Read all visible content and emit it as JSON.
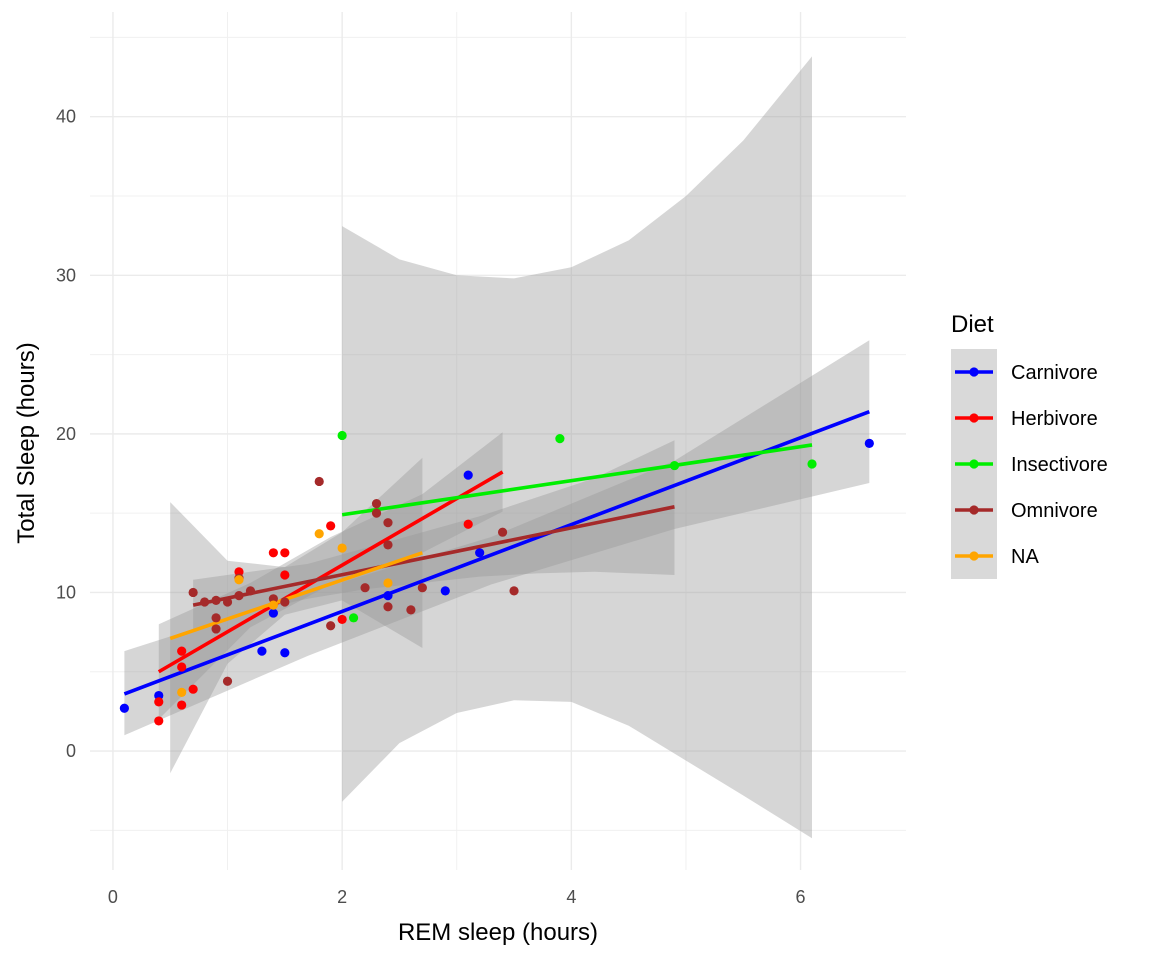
{
  "chart_data": {
    "type": "scatter",
    "title": "",
    "xlabel": "REM sleep (hours)",
    "ylabel": "Total Sleep (hours)",
    "xlim": [
      -0.2,
      6.92
    ],
    "ylim": [
      -7.5,
      46.6
    ],
    "x_ticks": [
      0,
      2,
      4,
      6
    ],
    "y_ticks": [
      0,
      10,
      20,
      30,
      40
    ],
    "grid": true,
    "legend": {
      "title": "Diet",
      "placement": "right",
      "entries": [
        {
          "name": "Carnivore",
          "color": "#0000ff"
        },
        {
          "name": "Herbivore",
          "color": "#ff0000"
        },
        {
          "name": "Insectivore",
          "color": "#00ee00"
        },
        {
          "name": "Omnivore",
          "color": "#a52a2a"
        },
        {
          "name": "NA",
          "color": "#ffa500"
        }
      ]
    },
    "series": [
      {
        "name": "Carnivore",
        "color": "#0000ff",
        "points": [
          [
            0.1,
            2.7
          ],
          [
            0.4,
            3.5
          ],
          [
            1.3,
            6.3
          ],
          [
            1.4,
            8.7
          ],
          [
            1.5,
            6.2
          ],
          [
            2.4,
            9.8
          ],
          [
            2.9,
            10.1
          ],
          [
            3.1,
            17.4
          ],
          [
            3.2,
            12.5
          ],
          [
            6.6,
            19.4
          ]
        ],
        "trend": [
          [
            0.1,
            3.6
          ],
          [
            6.6,
            21.4
          ]
        ],
        "band": {
          "x": [
            0.1,
            1.7,
            3.3,
            4.9,
            6.6
          ],
          "lower": [
            1.0,
            6.0,
            10.5,
            14.0,
            16.9
          ],
          "upper": [
            6.3,
            10.0,
            13.5,
            18.3,
            25.9
          ]
        }
      },
      {
        "name": "Herbivore",
        "color": "#ff0000",
        "points": [
          [
            0.4,
            1.9
          ],
          [
            0.4,
            3.1
          ],
          [
            0.6,
            2.9
          ],
          [
            0.6,
            5.3
          ],
          [
            0.6,
            6.3
          ],
          [
            1.4,
            12.5
          ],
          [
            1.5,
            12.5
          ],
          [
            1.5,
            11.1
          ],
          [
            1.9,
            14.2
          ],
          [
            1.1,
            11.3
          ],
          [
            2.0,
            8.3
          ],
          [
            3.1,
            14.3
          ],
          [
            0.7,
            3.9
          ]
        ],
        "trend": [
          [
            0.4,
            5.0
          ],
          [
            3.4,
            17.6
          ]
        ],
        "band": {
          "x": [
            0.4,
            1.2,
            1.9,
            2.7,
            3.4
          ],
          "lower": [
            2.0,
            7.8,
            10.5,
            12.5,
            15.1
          ],
          "upper": [
            8.0,
            10.6,
            13.5,
            16.2,
            20.1
          ]
        }
      },
      {
        "name": "Insectivore",
        "color": "#00ee00",
        "points": [
          [
            2.0,
            19.9
          ],
          [
            2.1,
            8.4
          ],
          [
            3.9,
            19.7
          ],
          [
            6.1,
            18.1
          ],
          [
            4.9,
            18.0
          ]
        ],
        "trend": [
          [
            2.0,
            14.9
          ],
          [
            6.1,
            19.3
          ]
        ],
        "band": {
          "x": [
            2.0,
            2.5,
            3.0,
            3.5,
            4.0,
            4.5,
            5.0,
            5.5,
            6.1
          ],
          "lower": [
            -3.2,
            0.5,
            2.4,
            3.2,
            3.1,
            1.6,
            -0.6,
            -2.8,
            -5.5
          ],
          "upper": [
            33.1,
            31.0,
            30.0,
            29.8,
            30.5,
            32.2,
            35.0,
            38.5,
            43.8
          ]
        }
      },
      {
        "name": "Omnivore",
        "color": "#a52a2a",
        "points": [
          [
            0.7,
            10.0
          ],
          [
            0.8,
            9.4
          ],
          [
            0.9,
            9.5
          ],
          [
            0.9,
            8.4
          ],
          [
            0.9,
            7.7
          ],
          [
            1.0,
            9.4
          ],
          [
            1.0,
            4.4
          ],
          [
            1.1,
            10.9
          ],
          [
            1.1,
            9.8
          ],
          [
            1.2,
            10.1
          ],
          [
            1.4,
            9.6
          ],
          [
            1.5,
            9.4
          ],
          [
            1.8,
            17.0
          ],
          [
            1.9,
            7.9
          ],
          [
            2.2,
            10.3
          ],
          [
            2.3,
            15.0
          ],
          [
            2.3,
            15.6
          ],
          [
            2.4,
            14.4
          ],
          [
            2.4,
            13.0
          ],
          [
            2.4,
            9.1
          ],
          [
            2.6,
            8.9
          ],
          [
            2.7,
            10.3
          ],
          [
            3.4,
            13.8
          ],
          [
            3.5,
            10.1
          ]
        ],
        "trend": [
          [
            0.7,
            9.2
          ],
          [
            4.9,
            15.4
          ]
        ],
        "band": {
          "x": [
            0.7,
            1.2,
            1.7,
            2.2,
            2.7,
            3.2,
            3.7,
            4.2,
            4.9
          ],
          "lower": [
            7.5,
            8.8,
            9.6,
            10.2,
            10.6,
            11.0,
            11.2,
            11.3,
            11.1
          ],
          "upper": [
            10.8,
            11.3,
            11.8,
            12.8,
            13.8,
            14.8,
            16.0,
            17.2,
            19.6
          ]
        }
      },
      {
        "name": "NA",
        "color": "#ffa500",
        "points": [
          [
            0.6,
            3.7
          ],
          [
            1.4,
            9.2
          ],
          [
            1.8,
            13.7
          ],
          [
            2.0,
            12.8
          ],
          [
            2.4,
            10.6
          ],
          [
            1.1,
            10.8
          ]
        ],
        "trend": [
          [
            0.5,
            7.1
          ],
          [
            2.7,
            12.5
          ]
        ],
        "band": {
          "x": [
            0.5,
            1.0,
            1.5,
            2.0,
            2.7
          ],
          "lower": [
            -1.4,
            5.5,
            8.6,
            9.5,
            6.5
          ],
          "upper": [
            15.7,
            12.0,
            11.6,
            13.8,
            18.5
          ]
        }
      }
    ]
  }
}
